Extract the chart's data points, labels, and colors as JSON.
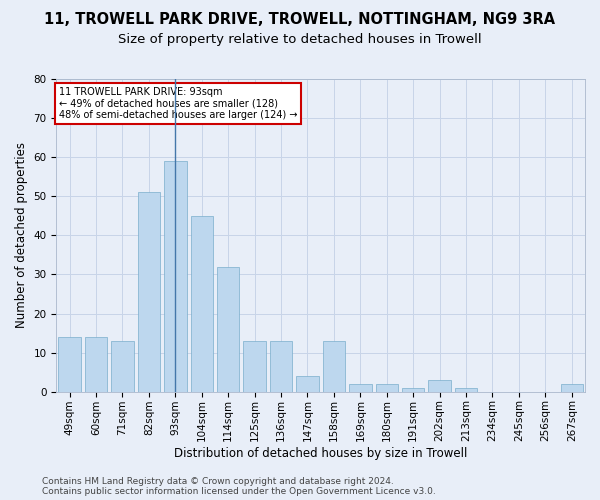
{
  "title1": "11, TROWELL PARK DRIVE, TROWELL, NOTTINGHAM, NG9 3RA",
  "title2": "Size of property relative to detached houses in Trowell",
  "xlabel": "Distribution of detached houses by size in Trowell",
  "ylabel": "Number of detached properties",
  "categories": [
    "49sqm",
    "60sqm",
    "71sqm",
    "82sqm",
    "93sqm",
    "104sqm",
    "114sqm",
    "125sqm",
    "136sqm",
    "147sqm",
    "158sqm",
    "169sqm",
    "180sqm",
    "191sqm",
    "202sqm",
    "213sqm",
    "234sqm",
    "245sqm",
    "256sqm",
    "267sqm"
  ],
  "values": [
    14,
    14,
    13,
    51,
    59,
    45,
    32,
    13,
    13,
    4,
    13,
    2,
    2,
    1,
    3,
    1,
    0,
    0,
    0,
    2
  ],
  "bar_color": "#bdd7ee",
  "bar_edge_color": "#7aaecc",
  "highlight_index": 4,
  "highlight_line_color": "#4477aa",
  "annotation_box_text": "11 TROWELL PARK DRIVE: 93sqm\n← 49% of detached houses are smaller (128)\n48% of semi-detached houses are larger (124) →",
  "annotation_box_color": "white",
  "annotation_box_edge_color": "#cc0000",
  "ylim": [
    0,
    80
  ],
  "yticks": [
    0,
    10,
    20,
    30,
    40,
    50,
    60,
    70,
    80
  ],
  "grid_color": "#c8d4e8",
  "background_color": "#e8eef8",
  "footer1": "Contains HM Land Registry data © Crown copyright and database right 2024.",
  "footer2": "Contains public sector information licensed under the Open Government Licence v3.0.",
  "title1_fontsize": 10.5,
  "title2_fontsize": 9.5,
  "xlabel_fontsize": 8.5,
  "ylabel_fontsize": 8.5,
  "tick_fontsize": 7.5,
  "footer_fontsize": 6.5
}
